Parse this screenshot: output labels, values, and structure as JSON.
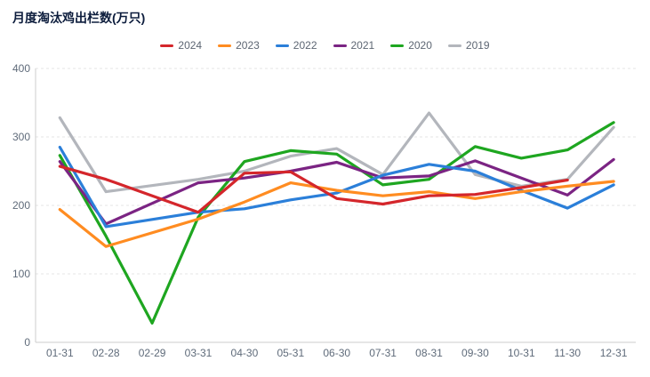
{
  "title": "月度淘汰鸡出栏数(万只)",
  "chart_data": {
    "type": "line",
    "title": "月度淘汰鸡出栏数(万只)",
    "categories": [
      "01-31",
      "02-28",
      "02-29",
      "03-31",
      "04-30",
      "05-31",
      "06-30",
      "07-31",
      "08-31",
      "09-30",
      "10-31",
      "11-30",
      "12-31"
    ],
    "series": [
      {
        "name": "2024",
        "color": "#d4262b",
        "values": [
          257,
          238,
          null,
          190,
          247,
          249,
          210,
          202,
          214,
          216,
          226,
          237,
          null
        ]
      },
      {
        "name": "2023",
        "color": "#ff8c21",
        "values": [
          194,
          140,
          null,
          180,
          205,
          233,
          222,
          214,
          220,
          210,
          220,
          228,
          235
        ]
      },
      {
        "name": "2022",
        "color": "#2b7fd9",
        "values": [
          285,
          169,
          null,
          190,
          195,
          208,
          218,
          244,
          260,
          250,
          222,
          196,
          230
        ]
      },
      {
        "name": "2021",
        "color": "#7b2483",
        "values": [
          264,
          173,
          null,
          233,
          240,
          250,
          263,
          240,
          243,
          265,
          240,
          215,
          267
        ]
      },
      {
        "name": "2020",
        "color": "#1ea620",
        "values": [
          273,
          155,
          28,
          183,
          264,
          280,
          275,
          230,
          238,
          286,
          269,
          281,
          321
        ]
      },
      {
        "name": "2019",
        "color": "#b3b6bc",
        "values": [
          328,
          220,
          null,
          238,
          250,
          272,
          283,
          245,
          335,
          245,
          228,
          238,
          314
        ]
      }
    ],
    "xlabel": "",
    "ylabel": "",
    "ylim": [
      0,
      400
    ],
    "yticks": [
      0,
      100,
      200,
      300,
      400
    ],
    "grid": true,
    "gridline_style": "dashed",
    "legend_position": "top-center",
    "connect_nulls": true
  },
  "colors": {
    "title_text": "#0c1c3c",
    "axis_line": "#cccccc",
    "gridline": "#e4e4e4",
    "tick_label": "#5f6b7a",
    "legend_label": "#5d6673",
    "background": "#ffffff"
  }
}
